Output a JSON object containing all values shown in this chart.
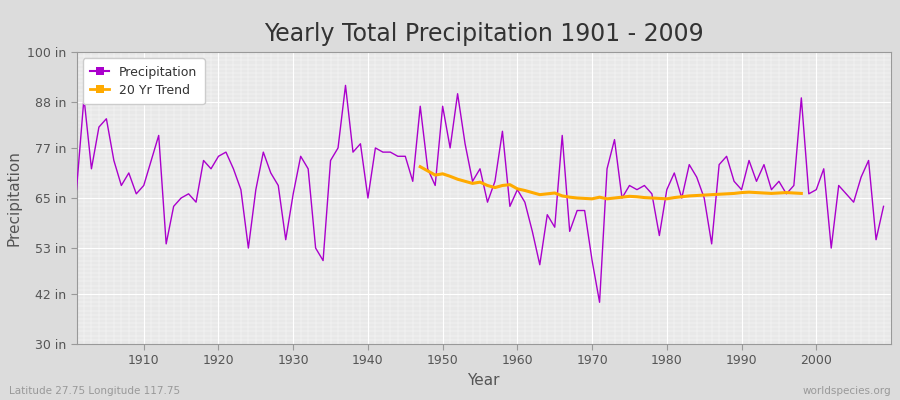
{
  "title": "Yearly Total Precipitation 1901 - 2009",
  "xlabel": "Year",
  "ylabel": "Precipitation",
  "fig_bg_color": "#dcdcdc",
  "plot_bg_color": "#e8e8e8",
  "line_color": "#aa00cc",
  "trend_color": "#ffaa00",
  "ylim": [
    30,
    100
  ],
  "yticks": [
    30,
    42,
    53,
    65,
    77,
    88,
    100
  ],
  "ytick_labels": [
    "30 in",
    "42 in",
    "53 in",
    "65 in",
    "77 in",
    "88 in",
    "100 in"
  ],
  "xlim": [
    1901,
    2010
  ],
  "xticks": [
    1910,
    1920,
    1930,
    1940,
    1950,
    1960,
    1970,
    1980,
    1990,
    2000
  ],
  "title_fontsize": 17,
  "axis_label_fontsize": 11,
  "tick_fontsize": 9,
  "legend_fontsize": 9,
  "footer_left": "Latitude 27.75 Longitude 117.75",
  "footer_right": "worldspecies.org",
  "years": [
    1901,
    1902,
    1903,
    1904,
    1905,
    1906,
    1907,
    1908,
    1909,
    1910,
    1911,
    1912,
    1913,
    1914,
    1915,
    1916,
    1917,
    1918,
    1919,
    1920,
    1921,
    1922,
    1923,
    1924,
    1925,
    1926,
    1927,
    1928,
    1929,
    1930,
    1931,
    1932,
    1933,
    1934,
    1935,
    1936,
    1937,
    1938,
    1939,
    1940,
    1941,
    1942,
    1943,
    1944,
    1945,
    1946,
    1947,
    1948,
    1949,
    1950,
    1951,
    1952,
    1953,
    1954,
    1955,
    1956,
    1957,
    1958,
    1959,
    1960,
    1961,
    1962,
    1963,
    1964,
    1965,
    1966,
    1967,
    1968,
    1969,
    1970,
    1971,
    1972,
    1973,
    1974,
    1975,
    1976,
    1977,
    1978,
    1979,
    1980,
    1981,
    1982,
    1983,
    1984,
    1985,
    1986,
    1987,
    1988,
    1989,
    1990,
    1991,
    1992,
    1993,
    1994,
    1995,
    1996,
    1997,
    1998,
    1999,
    2000,
    2001,
    2002,
    2003,
    2004,
    2005,
    2006,
    2007,
    2008,
    2009
  ],
  "precip": [
    67,
    89,
    72,
    82,
    84,
    74,
    68,
    71,
    66,
    68,
    74,
    80,
    54,
    63,
    65,
    66,
    64,
    74,
    72,
    75,
    76,
    72,
    67,
    53,
    67,
    76,
    71,
    68,
    55,
    66,
    75,
    72,
    53,
    50,
    74,
    77,
    92,
    76,
    78,
    65,
    77,
    76,
    76,
    75,
    75,
    69,
    87,
    72,
    68,
    87,
    77,
    90,
    78,
    69,
    72,
    64,
    69,
    81,
    63,
    67,
    64,
    57,
    49,
    61,
    58,
    80,
    57,
    62,
    62,
    50,
    40,
    72,
    79,
    65,
    68,
    67,
    68,
    66,
    56,
    67,
    71,
    65,
    73,
    70,
    65,
    54,
    73,
    75,
    69,
    67,
    74,
    69,
    73,
    67,
    69,
    66,
    68,
    89,
    66,
    67,
    72,
    53,
    68,
    66,
    64,
    70,
    74,
    55,
    63
  ],
  "trend_years": [
    1947,
    1948,
    1949,
    1950,
    1951,
    1952,
    1953,
    1954,
    1955,
    1956,
    1957,
    1958,
    1959,
    1960,
    1961,
    1962,
    1963,
    1964,
    1965,
    1966,
    1967,
    1968,
    1969,
    1970,
    1971,
    1972,
    1973,
    1974,
    1975,
    1976,
    1977,
    1978,
    1979,
    1980,
    1981,
    1982,
    1983,
    1984,
    1985,
    1986,
    1987,
    1988,
    1989,
    1990,
    1991,
    1992,
    1993,
    1994,
    1995,
    1996,
    1997,
    1998
  ],
  "trend_values": [
    72.5,
    71.5,
    70.5,
    70.8,
    70.2,
    69.5,
    69.0,
    68.5,
    68.8,
    68.0,
    67.5,
    68.0,
    68.2,
    67.2,
    66.8,
    66.3,
    65.8,
    66.0,
    66.2,
    65.5,
    65.2,
    65.0,
    64.9,
    64.8,
    65.2,
    64.8,
    65.0,
    65.2,
    65.4,
    65.3,
    65.1,
    65.0,
    64.9,
    64.8,
    65.1,
    65.3,
    65.5,
    65.6,
    65.7,
    65.8,
    65.9,
    66.0,
    66.1,
    66.3,
    66.4,
    66.3,
    66.2,
    66.1,
    66.2,
    66.3,
    66.2,
    66.1
  ]
}
